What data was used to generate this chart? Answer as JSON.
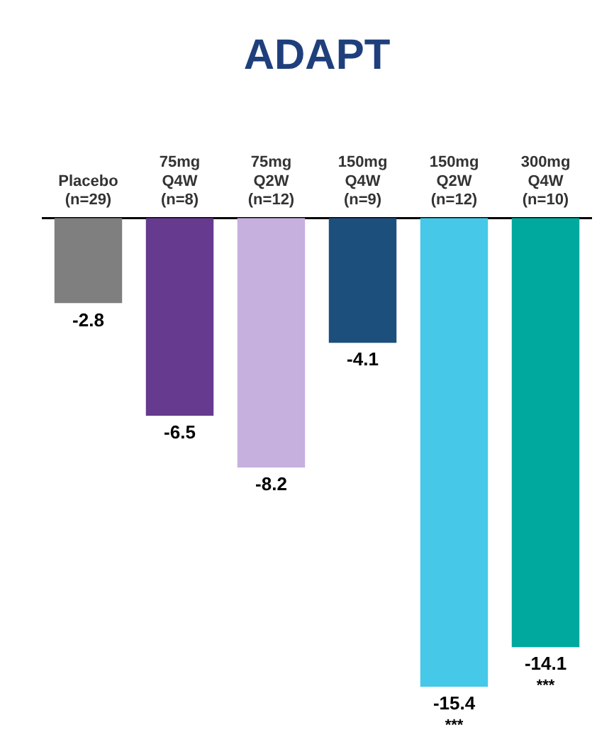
{
  "chart_data": {
    "type": "bar",
    "title": "ADAPT",
    "categories": [
      "Placebo\n(n=29)",
      "75mg\nQ4W\n(n=8)",
      "75mg\nQ2W\n(n=12)",
      "150mg\nQ4W\n(n=9)",
      "150mg\nQ2W\n(n=12)",
      "300mg\nQ4W\n(n=10)"
    ],
    "values": [
      -2.8,
      -6.5,
      -8.2,
      -4.1,
      -15.4,
      -14.1
    ],
    "colors": [
      "#7f7f7f",
      "#663a8e",
      "#c6b0de",
      "#1c4f7c",
      "#46c8e8",
      "#00a99d"
    ],
    "data_labels": true,
    "annotations": [
      {
        "text": "***",
        "x": "150mg\nQ2W\n(n=12)",
        "y": -15.4
      },
      {
        "text": "***",
        "x": "300mg\nQ4W\n(n=10)",
        "y": -14.1
      }
    ],
    "legend": false
  }
}
